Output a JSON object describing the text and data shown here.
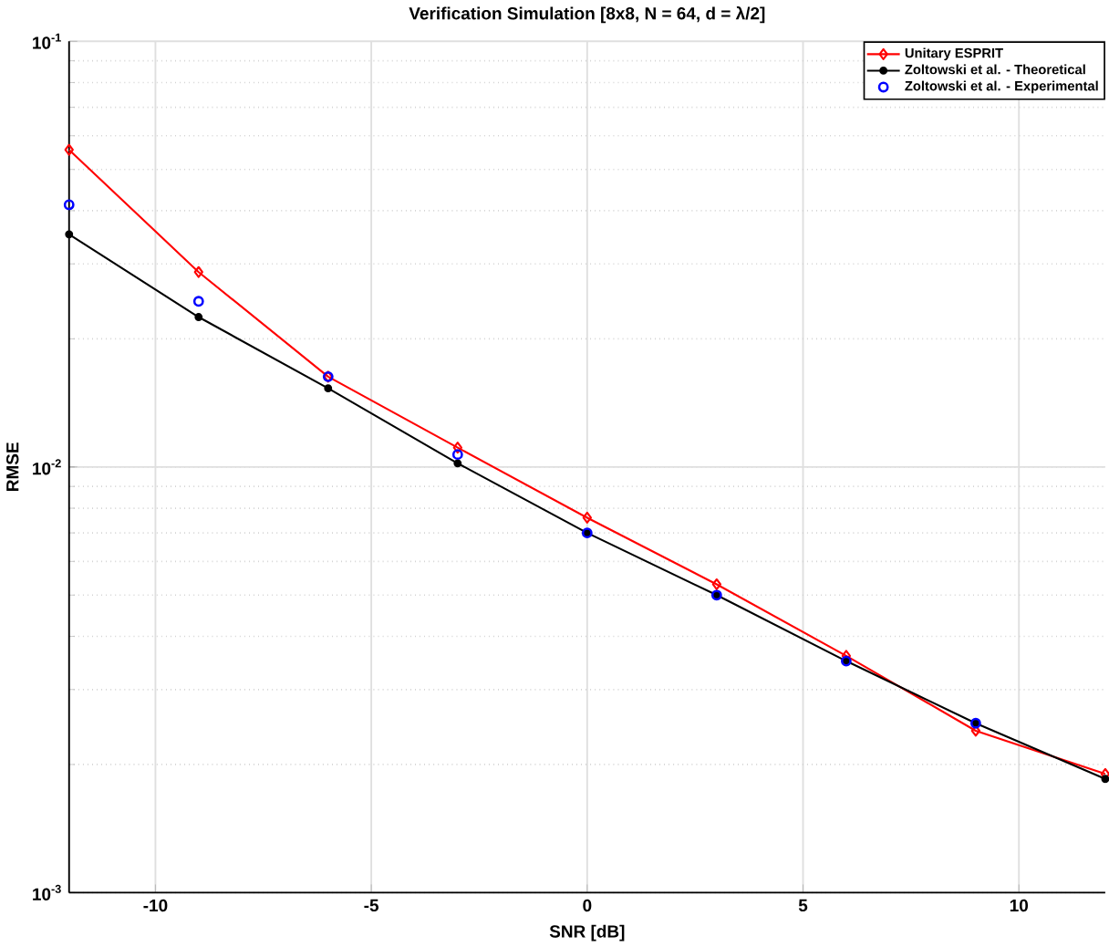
{
  "chart_data": {
    "type": "line",
    "title": "Verification Simulation [8x8, N = 64, d = λ/2]",
    "xlabel": "SNR [dB]",
    "ylabel": "RMSE",
    "log": "y",
    "grid": true,
    "legend": "top right",
    "xlim": [
      -12,
      12
    ],
    "xticks": [
      -10,
      -5,
      0,
      5,
      10
    ],
    "ylim": [
      0.001,
      0.1
    ],
    "yticks": [
      {
        "value": 0.001,
        "label": "10$^{-3}$"
      },
      {
        "value": 0.01,
        "label": "10$^{-2}$"
      },
      {
        "value": 0.1,
        "label": "10$^{-1}$"
      }
    ],
    "series": [
      {
        "name": "Unitary ESPRIT",
        "color": "#ff0000",
        "marker": "diamond",
        "x": [
          -12,
          -9,
          -6,
          -3,
          0,
          3,
          6,
          9,
          12
        ],
        "values": [
          0.0556,
          0.0287,
          0.0163,
          0.0111,
          0.0076,
          0.0053,
          0.0036,
          0.0024,
          0.0019
        ]
      },
      {
        "name": "Zoltowski et al. - Theoretical",
        "color": "#000000",
        "marker": "circle",
        "x": [
          -12,
          -9,
          -6,
          -3,
          0,
          3,
          6,
          9,
          12
        ],
        "values": [
          0.0352,
          0.0225,
          0.0153,
          0.0102,
          0.007,
          0.005,
          0.0035,
          0.0025,
          0.00185
        ]
      },
      {
        "name": "Zoltowski et al. - Experimental",
        "type": "scatter",
        "color": "#0000ff",
        "marker": "circle",
        "x": [
          -12,
          -9,
          -6,
          -3,
          0,
          3,
          6,
          9
        ],
        "values": [
          0.0413,
          0.0245,
          0.0163,
          0.0107,
          0.007,
          0.005,
          0.0035,
          0.0025
        ]
      }
    ]
  }
}
